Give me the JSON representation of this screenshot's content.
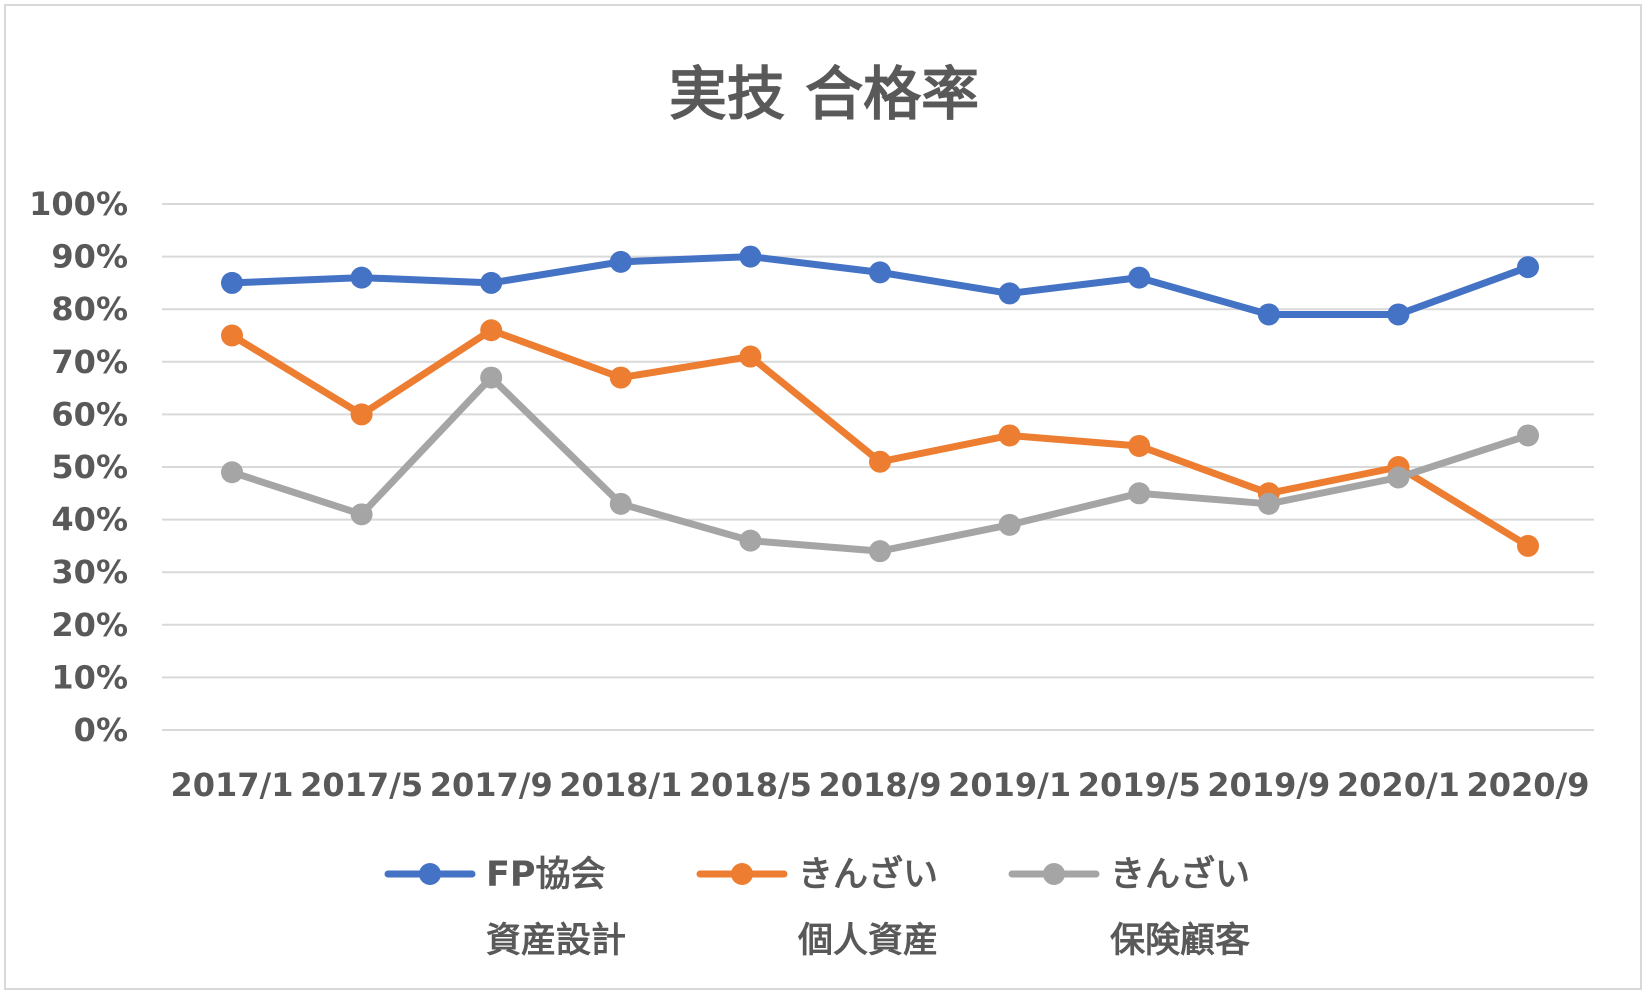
{
  "chart_data": {
    "type": "line",
    "title": "実技 合格率",
    "xlabel": "",
    "ylabel": "",
    "categories": [
      "2017/1",
      "2017/5",
      "2017/9",
      "2018/1",
      "2018/5",
      "2018/9",
      "2019/1",
      "2019/5",
      "2019/9",
      "2020/1",
      "2020/9"
    ],
    "y_ticks": [
      "0%",
      "10%",
      "20%",
      "30%",
      "40%",
      "50%",
      "60%",
      "70%",
      "80%",
      "90%",
      "100%"
    ],
    "ylim": [
      0,
      100
    ],
    "grid": true,
    "legend_position": "bottom",
    "series": [
      {
        "name_lines": [
          "FP協会",
          "資産設計"
        ],
        "color": "#4472c4",
        "values": [
          85,
          86,
          85,
          89,
          90,
          87,
          83,
          86,
          79,
          79,
          88
        ]
      },
      {
        "name_lines": [
          "きんざい",
          "個人資産"
        ],
        "color": "#ed7d31",
        "values": [
          75,
          60,
          76,
          67,
          71,
          51,
          56,
          54,
          45,
          50,
          35
        ]
      },
      {
        "name_lines": [
          "きんざい",
          "保険顧客"
        ],
        "color": "#a5a5a5",
        "values": [
          49,
          41,
          67,
          43,
          36,
          34,
          39,
          45,
          43,
          48,
          56
        ]
      }
    ]
  }
}
